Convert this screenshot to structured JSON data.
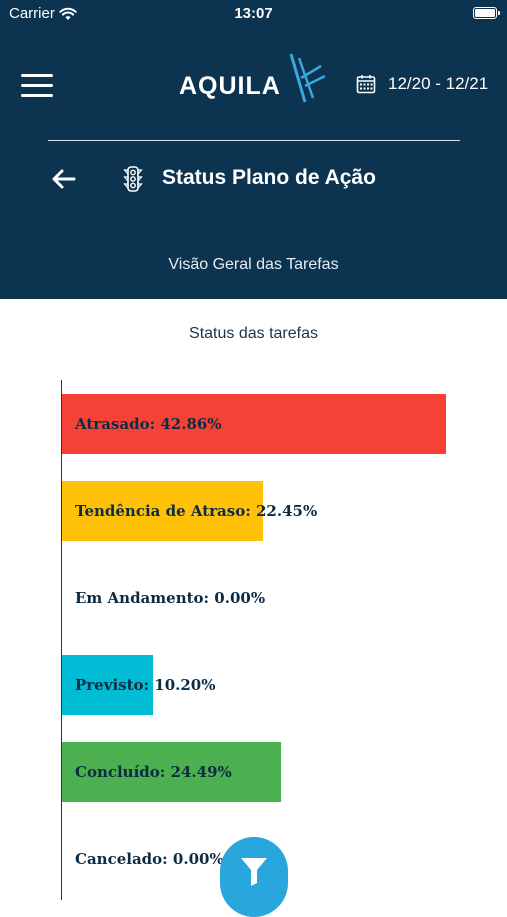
{
  "status_bar": {
    "carrier": "Carrier",
    "time": "13:07"
  },
  "header": {
    "logo_text": "AQUILA",
    "date_range": "12/20 - 12/21",
    "page_title": "Status Plano de Ação",
    "subtitle": "Visão Geral das Tarefas"
  },
  "colors": {
    "header_bg": "#0c3350",
    "atrasado": "#f44336",
    "tendencia": "#ffc107",
    "previsto": "#00bcd4",
    "concluido": "#4caf50",
    "fab": "#29a6dc"
  },
  "icons": [
    "wifi-icon",
    "battery-icon",
    "hamburger-menu-icon",
    "calendar-icon",
    "back-arrow-icon",
    "traffic-light-icon",
    "filter-icon"
  ],
  "chart_data": {
    "type": "bar",
    "orientation": "horizontal",
    "title": "Status das tarefas",
    "xlim": [
      0,
      50
    ],
    "categories": [
      "Atrasado",
      "Tendência de Atraso",
      "Em Andamento",
      "Previsto",
      "Concluído",
      "Cancelado"
    ],
    "values": [
      42.86,
      22.45,
      0.0,
      10.2,
      24.49,
      0.0
    ],
    "colors": [
      "#f44336",
      "#ffc107",
      "#9e9e9e",
      "#00bcd4",
      "#4caf50",
      "#9e9e9e"
    ],
    "labels": [
      "Atrasado: 42.86%",
      "Tendência de Atraso: 22.45%",
      "Em Andamento: 0.00%",
      "Previsto: 10.20%",
      "Concluído: 24.49%",
      "Cancelado: 0.00%"
    ]
  }
}
